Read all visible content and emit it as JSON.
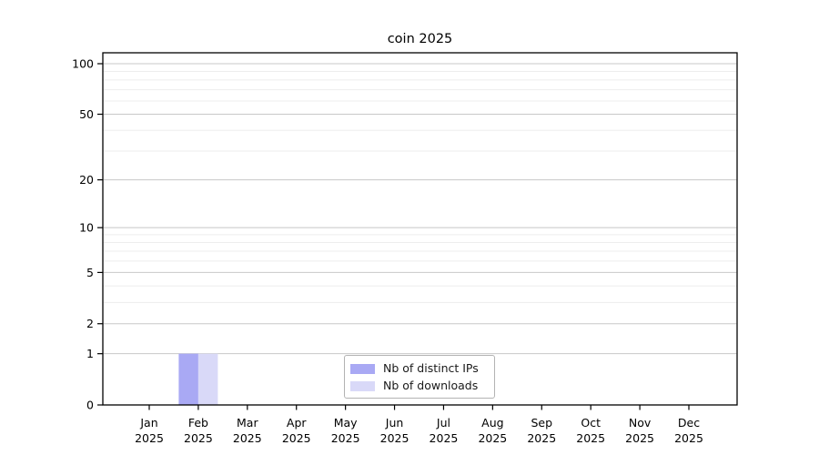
{
  "title": "coin 2025",
  "chart_data": {
    "type": "bar",
    "title": "coin 2025",
    "categories": [
      "Jan",
      "Feb",
      "Mar",
      "Apr",
      "May",
      "Jun",
      "Jul",
      "Aug",
      "Sep",
      "Oct",
      "Nov",
      "Dec"
    ],
    "category_year": "2025",
    "series": [
      {
        "name": "Nb of distinct IPs",
        "color": "#a9a9f4",
        "values": [
          0,
          1,
          0,
          0,
          0,
          0,
          0,
          0,
          0,
          0,
          0,
          0
        ]
      },
      {
        "name": "Nb of downloads",
        "color": "#d9d9f8",
        "values": [
          0,
          1,
          0,
          0,
          0,
          0,
          0,
          0,
          0,
          0,
          0,
          0
        ]
      }
    ],
    "y_axis": {
      "scale": "log1p",
      "tick_values": [
        0,
        1,
        2,
        5,
        10,
        20,
        50,
        100
      ],
      "minor_gridline_values": [
        3,
        4,
        6,
        7,
        8,
        9,
        30,
        40,
        60,
        70,
        80,
        90
      ],
      "range": [
        0,
        117
      ]
    },
    "xlabel": "",
    "ylabel": "",
    "grid": true,
    "legend_position": "lower center"
  },
  "colors": {
    "axis": "#000000",
    "tick_text": "#000000",
    "major_grid": "#c8c8c8",
    "minor_grid": "#ededed",
    "legend_border": "#b3b3b3",
    "background": "#ffffff"
  }
}
